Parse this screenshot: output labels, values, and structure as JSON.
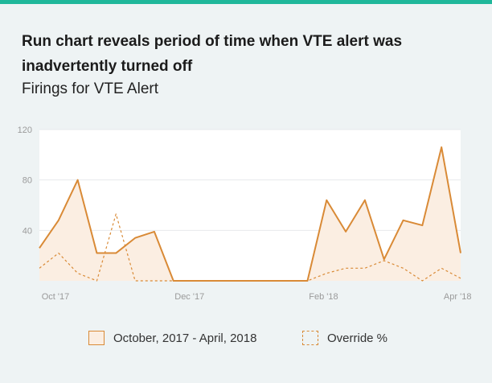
{
  "header": {
    "headline": "Run chart reveals period of time when VTE alert was inadvertently turned off",
    "subtitle": "Firings for VTE Alert"
  },
  "colors": {
    "accent_bar": "#1fb79a",
    "series": "#d98a36",
    "area_fill": "#fbeee2"
  },
  "chart_data": {
    "type": "area",
    "title": "Firings for VTE Alert",
    "xlabel": "",
    "ylabel": "",
    "ylim": [
      0,
      120
    ],
    "yticks": [
      40,
      80,
      120
    ],
    "xticks": [
      "Oct '17",
      "Dec '17",
      "Feb '18",
      "Apr '18"
    ],
    "grid": true,
    "legend_position": "bottom",
    "series": [
      {
        "name": "October, 2017 - April, 2018",
        "style": "solid-area",
        "values": [
          26,
          48,
          80,
          22,
          22,
          34,
          39,
          0,
          0,
          0,
          0,
          0,
          0,
          0,
          0,
          64,
          39,
          64,
          17,
          48,
          44,
          106,
          22
        ]
      },
      {
        "name": "Override %",
        "style": "dashed-line",
        "values": [
          10,
          22,
          6,
          0,
          53,
          0,
          0,
          0,
          0,
          0,
          0,
          0,
          0,
          0,
          0,
          6,
          10,
          10,
          16,
          10,
          0,
          10,
          2
        ]
      }
    ]
  }
}
